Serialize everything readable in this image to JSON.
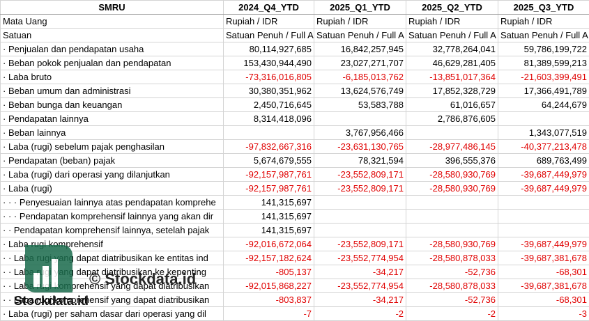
{
  "header": [
    "SMRU",
    "2024_Q4_YTD",
    "2025_Q1_YTD",
    "2025_Q2_YTD",
    "2025_Q3_YTD"
  ],
  "rows": [
    {
      "label": "Mata Uang",
      "values": [
        "Rupiah / IDR",
        "Rupiah / IDR",
        "Rupiah / IDR",
        "Rupiah / IDR"
      ]
    },
    {
      "label": "Satuan",
      "values": [
        "Satuan Penuh / Full A",
        "Satuan Penuh / Full A",
        "Satuan Penuh / Full A",
        "Satuan Penuh / Full A"
      ]
    },
    {
      "label": "· Penjualan dan pendapatan usaha",
      "values": [
        "80,114,927,685",
        "16,842,257,945",
        "32,778,264,041",
        "59,786,199,722"
      ]
    },
    {
      "label": "· Beban pokok penjualan dan pendapatan",
      "values": [
        "153,430,944,490",
        "23,027,271,707",
        "46,629,281,405",
        "81,389,599,213"
      ]
    },
    {
      "label": "· Laba bruto",
      "values": [
        "-73,316,016,805",
        "-6,185,013,762",
        "-13,851,017,364",
        "-21,603,399,491"
      ]
    },
    {
      "label": "· Beban umum dan administrasi",
      "values": [
        "30,380,351,962",
        "13,624,576,749",
        "17,852,328,729",
        "17,366,491,789"
      ]
    },
    {
      "label": "· Beban bunga dan keuangan",
      "values": [
        "2,450,716,645",
        "53,583,788",
        "61,016,657",
        "64,244,679"
      ]
    },
    {
      "label": "· Pendapatan lainnya",
      "values": [
        "8,314,418,096",
        null,
        "2,786,876,605",
        null
      ]
    },
    {
      "label": "· Beban lainnya",
      "values": [
        null,
        "3,767,956,466",
        null,
        "1,343,077,519"
      ]
    },
    {
      "label": "· Laba (rugi) sebelum pajak penghasilan",
      "values": [
        "-97,832,667,316",
        "-23,631,130,765",
        "-28,977,486,145",
        "-40,377,213,478"
      ]
    },
    {
      "label": "· Pendapatan (beban) pajak",
      "values": [
        "5,674,679,555",
        "78,321,594",
        "396,555,376",
        "689,763,499"
      ]
    },
    {
      "label": "· Laba (rugi) dari operasi yang dilanjutkan",
      "values": [
        "-92,157,987,761",
        "-23,552,809,171",
        "-28,580,930,769",
        "-39,687,449,979"
      ]
    },
    {
      "label": "· Laba (rugi)",
      "values": [
        "-92,157,987,761",
        "-23,552,809,171",
        "-28,580,930,769",
        "-39,687,449,979"
      ]
    },
    {
      "label": "· · · Penyesuaian lainnya atas pendapatan komprehe",
      "values": [
        "141,315,697",
        null,
        null,
        null
      ]
    },
    {
      "label": "· · · Pendapatan komprehensif lainnya yang akan dir",
      "values": [
        "141,315,697",
        null,
        null,
        null
      ]
    },
    {
      "label": "· · Pendapatan komprehensif lainnya, setelah pajak",
      "values": [
        "141,315,697",
        null,
        null,
        null
      ]
    },
    {
      "label": "· Laba rugi komprehensif",
      "values": [
        "-92,016,672,064",
        "-23,552,809,171",
        "-28,580,930,769",
        "-39,687,449,979"
      ]
    },
    {
      "label": "· · Laba rugi yang dapat diatribusikan ke entitas ind",
      "values": [
        "-92,157,182,624",
        "-23,552,774,954",
        "-28,580,878,033",
        "-39,687,381,678"
      ]
    },
    {
      "label": "· · Laba rugi yang dapat diatribusikan ke kepenting",
      "values": [
        "-805,137",
        "-34,217",
        "-52,736",
        "-68,301"
      ]
    },
    {
      "label": "· · Laba rugi komprehensif yang dapat diatribusikan",
      "values": [
        "-92,015,868,227",
        "-23,552,774,954",
        "-28,580,878,033",
        "-39,687,381,678"
      ]
    },
    {
      "label": "· · Laba rugi komprehensif yang dapat diatribusikan",
      "values": [
        "-803,837",
        "-34,217",
        "-52,736",
        "-68,301"
      ]
    },
    {
      "label": "· Laba (rugi) per saham dasar dari operasi yang dil",
      "values": [
        "-7",
        "-2",
        "-2",
        "-3"
      ]
    }
  ],
  "watermark": {
    "center": "© Stockdata.id",
    "logo_text": "Stockdata.id"
  }
}
